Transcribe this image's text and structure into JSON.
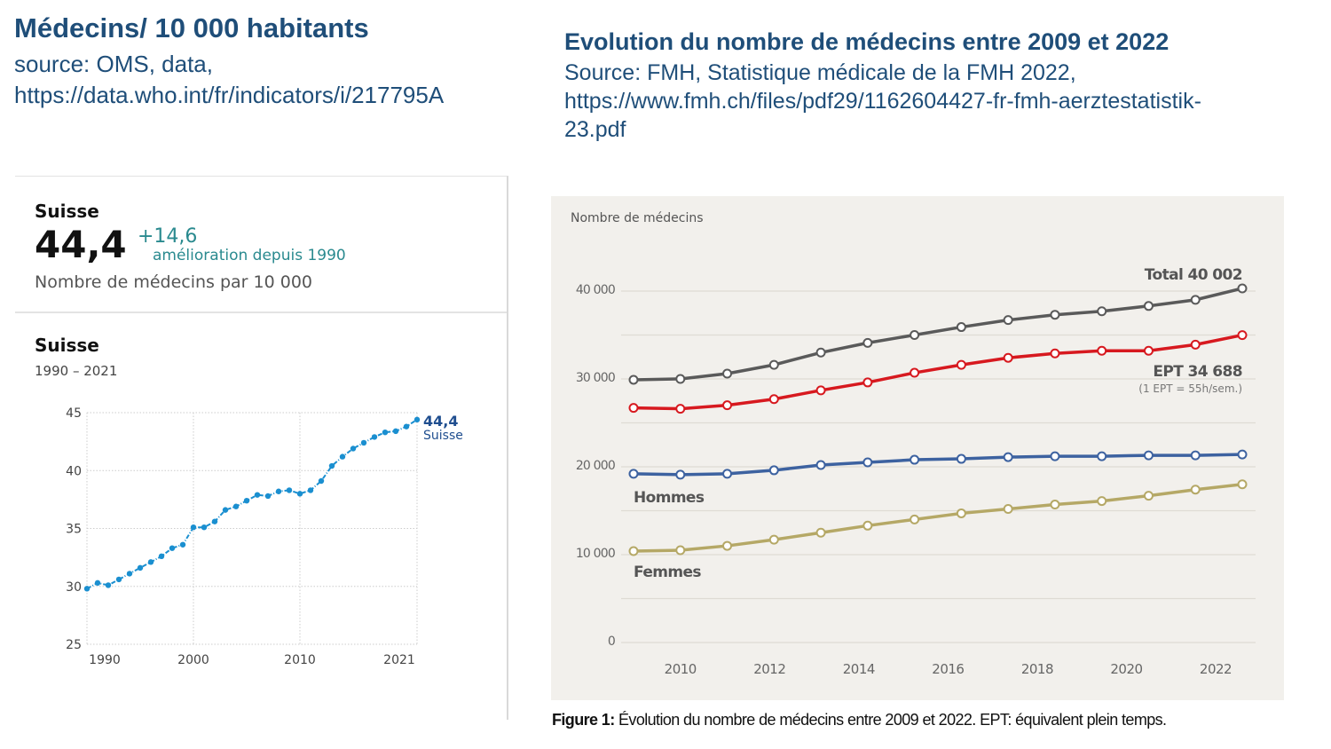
{
  "left_header": {
    "title": "Médecins/ 10 000 habitants",
    "source_line1": "source: OMS, data,",
    "source_line2": "https://data.who.int/fr/indicators/i/217795A"
  },
  "right_header": {
    "title": "Evolution du nombre de médecins entre 2009 et 2022",
    "source_line1": "Source: FMH, Statistique médicale de la FMH 2022,",
    "source_line2": "https://www.fmh.ch/files/pdf29/1162604427-fr-fmh-aerztestatistik-",
    "source_line3": "23.pdf"
  },
  "who_card": {
    "country": "Suisse",
    "value": "44,4",
    "change": "+14,6",
    "change_label": "amélioration depuis 1990",
    "metric": "Nombre de médecins par 10 000",
    "chart_country": "Suisse",
    "period": "1990 – 2021",
    "accent": "#1a8fd0",
    "change_color": "#2a8a8f"
  },
  "chart_data": [
    {
      "type": "line",
      "title": "Suisse",
      "subtitle": "1990 – 2021",
      "xlabel": "",
      "ylabel": "",
      "xlim": [
        1990,
        2021
      ],
      "ylim": [
        25,
        45
      ],
      "yticks": [
        25,
        30,
        35,
        40,
        45
      ],
      "xticks": [
        1990,
        2000,
        2010,
        2021
      ],
      "grid": true,
      "x": [
        1990,
        1991,
        1992,
        1993,
        1994,
        1995,
        1996,
        1997,
        1998,
        1999,
        2000,
        2001,
        2002,
        2003,
        2004,
        2005,
        2006,
        2007,
        2008,
        2009,
        2010,
        2011,
        2012,
        2013,
        2014,
        2015,
        2016,
        2017,
        2018,
        2019,
        2020,
        2021
      ],
      "series": [
        {
          "name": "Suisse",
          "color": "#1a8fd0",
          "values": [
            29.8,
            30.3,
            30.1,
            30.6,
            31.1,
            31.6,
            32.1,
            32.6,
            33.3,
            33.6,
            35.1,
            35.1,
            35.6,
            36.6,
            36.9,
            37.4,
            37.9,
            37.8,
            38.2,
            38.3,
            38.0,
            38.3,
            39.1,
            40.4,
            41.2,
            41.9,
            42.4,
            42.9,
            43.3,
            43.4,
            43.8,
            44.4
          ]
        }
      ],
      "end_label_value": "44,4",
      "end_label_name": "Suisse"
    },
    {
      "type": "line",
      "title": "Nombre de médecins",
      "xlabel": "",
      "ylabel": "Nombre de médecins",
      "xlim": [
        2009,
        2022
      ],
      "ylim": [
        0,
        40000
      ],
      "yticks": [
        0,
        10000,
        20000,
        30000,
        40000
      ],
      "ytick_labels": [
        "0",
        "10 000",
        "20 000",
        "30 000",
        "40 000"
      ],
      "gridlines": [
        0,
        5000,
        10000,
        15000,
        20000,
        25000,
        30000,
        35000,
        40000
      ],
      "xticks": [
        2010,
        2012,
        2014,
        2016,
        2018,
        2020,
        2022
      ],
      "grid": true,
      "x": [
        2009,
        2010,
        2011,
        2012,
        2013,
        2014,
        2015,
        2016,
        2017,
        2018,
        2019,
        2020,
        2021,
        2022
      ],
      "series": [
        {
          "name": "Total",
          "color": "#5a5a5a",
          "label": "Total 40 002",
          "values": [
            29600,
            29700,
            30300,
            31300,
            32700,
            33800,
            34700,
            35600,
            36400,
            37000,
            37400,
            38000,
            38700,
            40002
          ]
        },
        {
          "name": "EPT",
          "color": "#d7191f",
          "label": "EPT 34 688",
          "note": "(1 EPT = 55h/sem.)",
          "values": [
            26400,
            26300,
            26700,
            27400,
            28400,
            29300,
            30400,
            31300,
            32100,
            32600,
            32900,
            32900,
            33600,
            34688
          ]
        },
        {
          "name": "Hommes",
          "color": "#3d62a0",
          "label": "Hommes",
          "values": [
            18900,
            18800,
            18900,
            19300,
            19900,
            20200,
            20500,
            20600,
            20800,
            20900,
            20900,
            21000,
            21000,
            21100
          ]
        },
        {
          "name": "Femmes",
          "color": "#b5a866",
          "label": "Femmes",
          "values": [
            10100,
            10200,
            10700,
            11400,
            12200,
            13000,
            13700,
            14400,
            14900,
            15400,
            15800,
            16400,
            17100,
            17700
          ]
        }
      ],
      "caption_bold": "Figure 1:",
      "caption": " Évolution du nombre de médecins entre 2009 et 2022. EPT: équivalent plein temps."
    }
  ]
}
